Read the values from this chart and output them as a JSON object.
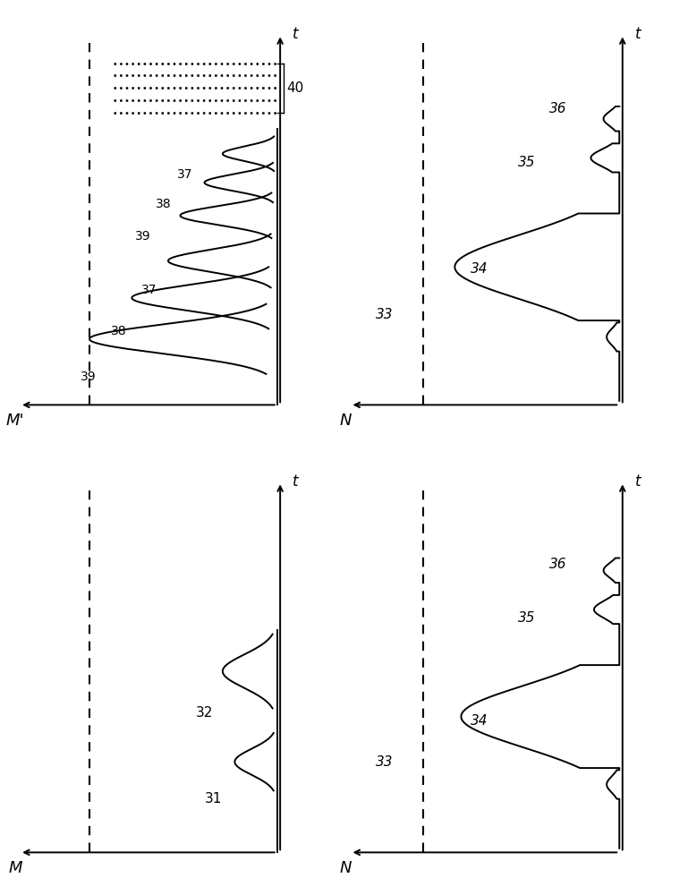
{
  "bg_color": "#ffffff",
  "line_color": "#000000",
  "fig_width": 7.69,
  "fig_height": 10.0,
  "labels": {
    "M": "M",
    "M_prime": "M'",
    "N": "N",
    "t": "t",
    "num_31": "31",
    "num_32": "32",
    "num_33": "33",
    "num_34": "34",
    "num_35": "35",
    "num_36": "36",
    "num_37": "37",
    "num_38": "38",
    "num_39": "39",
    "num_40": "40"
  }
}
